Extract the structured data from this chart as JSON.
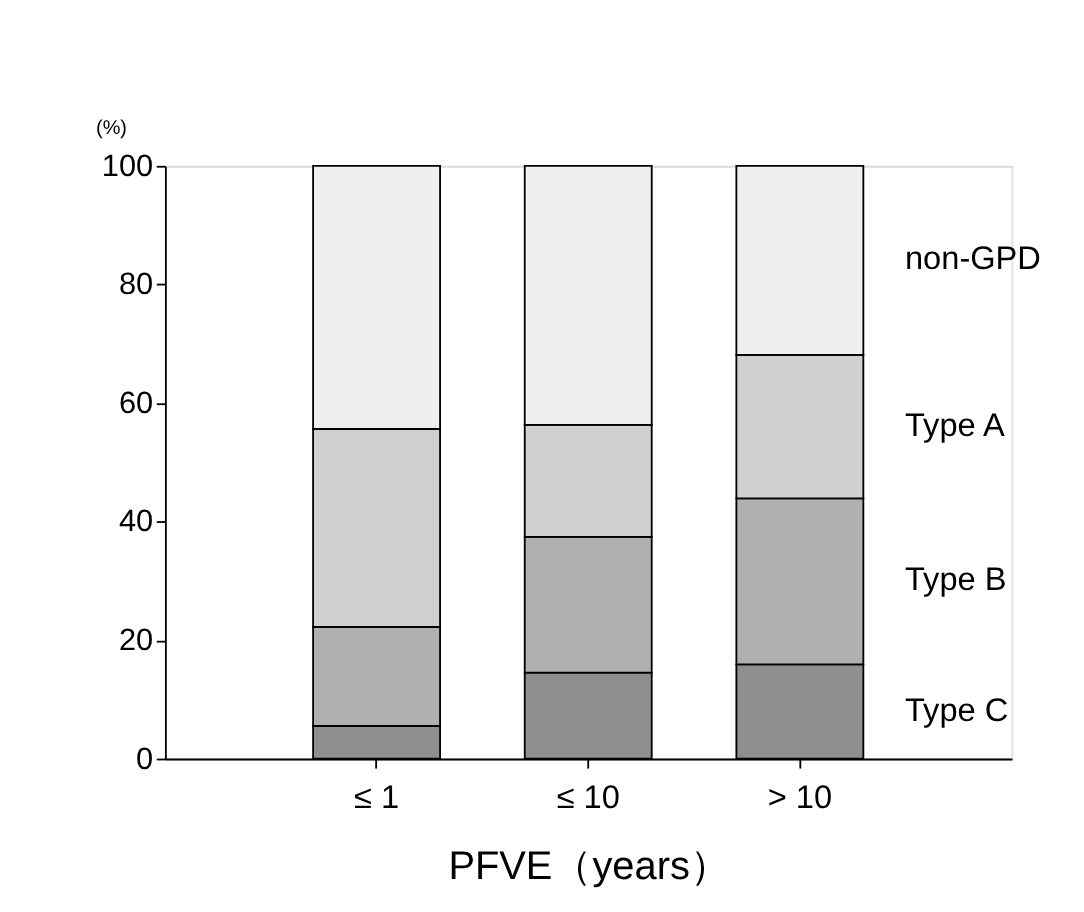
{
  "chart_data": {
    "type": "bar",
    "stacked": true,
    "xlabel": "PFVE（years）",
    "ylabel": "(%)",
    "categories": [
      "≤ 1",
      "≤ 10",
      "> 10"
    ],
    "series": [
      {
        "name": "Type C",
        "color": "#8f8f8f",
        "values": [
          5.5,
          14.5,
          15.9
        ]
      },
      {
        "name": "Type B",
        "color": "#b0b0b0",
        "values": [
          16.7,
          22.9,
          28.0
        ]
      },
      {
        "name": "Type A",
        "color": "#d0d0d0",
        "values": [
          33.4,
          18.9,
          24.2
        ]
      },
      {
        "name": "non-GPD",
        "color": "#efefef",
        "values": [
          44.4,
          43.7,
          31.9
        ]
      }
    ],
    "ylim": [
      0,
      100
    ],
    "yticks": [
      0,
      20,
      40,
      60,
      80,
      100
    ],
    "grid": false,
    "legend": false
  }
}
